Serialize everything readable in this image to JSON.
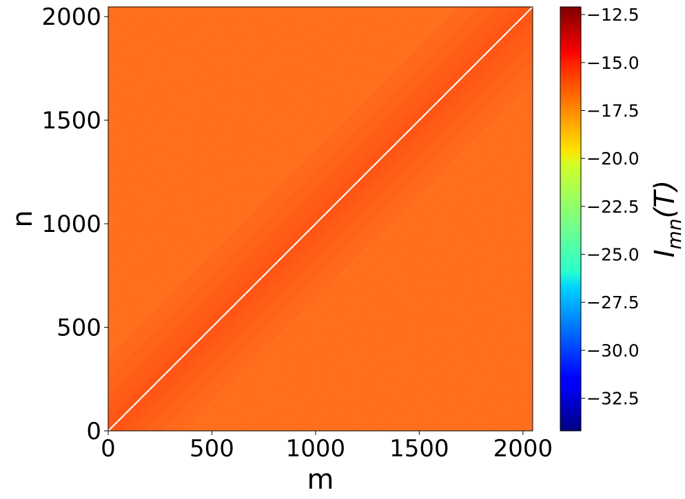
{
  "chart_data": {
    "type": "heatmap",
    "title": "",
    "xlabel": "m",
    "ylabel": "n",
    "xlim": [
      0,
      2047
    ],
    "ylim": [
      0,
      2047
    ],
    "x_ticks": [
      0,
      500,
      1000,
      1500,
      2000
    ],
    "x_tick_labels": [
      "0",
      "500",
      "1000",
      "1500",
      "2000"
    ],
    "y_ticks": [
      0,
      500,
      1000,
      1500,
      2000
    ],
    "y_tick_labels": [
      "0",
      "500",
      "1000",
      "1500",
      "2000"
    ],
    "colormap": "jet",
    "colorbar": {
      "label": "I_mn(T)",
      "label_display": {
        "base": "I",
        "subscript": "mn",
        "suffix": "(T)"
      },
      "range": [
        -34.2,
        -12.1
      ],
      "ticks": [
        -12.5,
        -15.0,
        -17.5,
        -20.0,
        -22.5,
        -25.0,
        -27.5,
        -30.0,
        -32.5
      ],
      "tick_labels": [
        "−12.5",
        "−15.0",
        "−17.5",
        "−20.0",
        "−22.5",
        "−25.0",
        "−27.5",
        "−30.0",
        "−32.5"
      ]
    },
    "field": {
      "background_value": -16.4,
      "near_diagonal_value": -15.6,
      "diagonal": "m = n, not drawn (white line)"
    },
    "grid": false,
    "colors": {
      "background": "#ff6a1a",
      "near_diagonal": "#ff4a10",
      "diagonal_line": "#ffffff"
    }
  }
}
